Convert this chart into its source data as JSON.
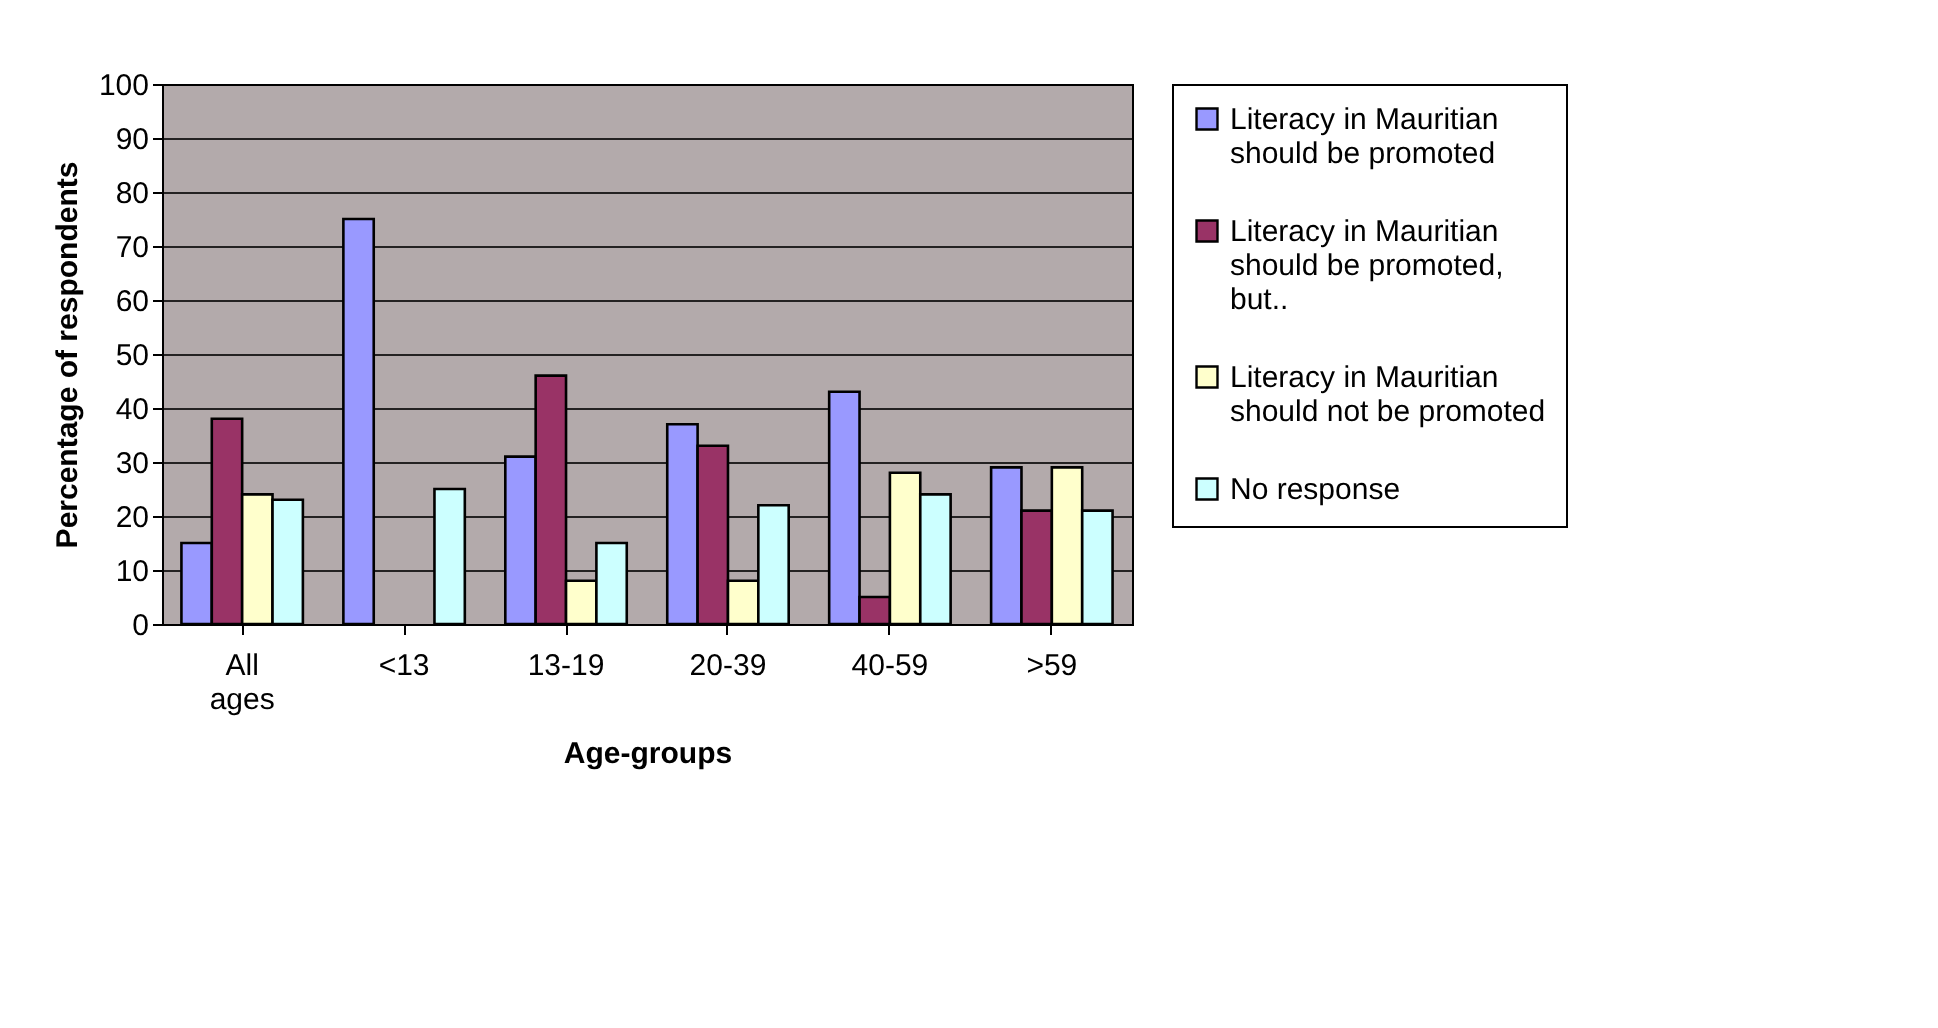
{
  "chart_data": {
    "type": "bar",
    "xlabel": "Age-groups",
    "ylabel": "Percentage of respondents",
    "categories": [
      "All ages",
      "<13",
      "13-19",
      "20-39",
      "40-59",
      ">59"
    ],
    "series": [
      {
        "name": "Literacy in Mauritian should be promoted",
        "color": "#9999ff",
        "values": [
          15,
          75,
          31,
          37,
          43,
          29
        ]
      },
      {
        "name": "Literacy in Mauritian should be promoted, but..",
        "color": "#993366",
        "values": [
          38,
          null,
          46,
          33,
          5,
          21
        ]
      },
      {
        "name": "Literacy in Mauritian should not be promoted",
        "color": "#ffffcc",
        "values": [
          24,
          null,
          8,
          8,
          28,
          29
        ]
      },
      {
        "name": "No response",
        "color": "#ccffff",
        "values": [
          23,
          25,
          15,
          22,
          24,
          21
        ]
      }
    ],
    "ylim": [
      0,
      100
    ],
    "yticks": [
      0,
      10,
      20,
      30,
      40,
      50,
      60,
      70,
      80,
      90,
      100
    ],
    "grid": "y",
    "legend": "right"
  }
}
